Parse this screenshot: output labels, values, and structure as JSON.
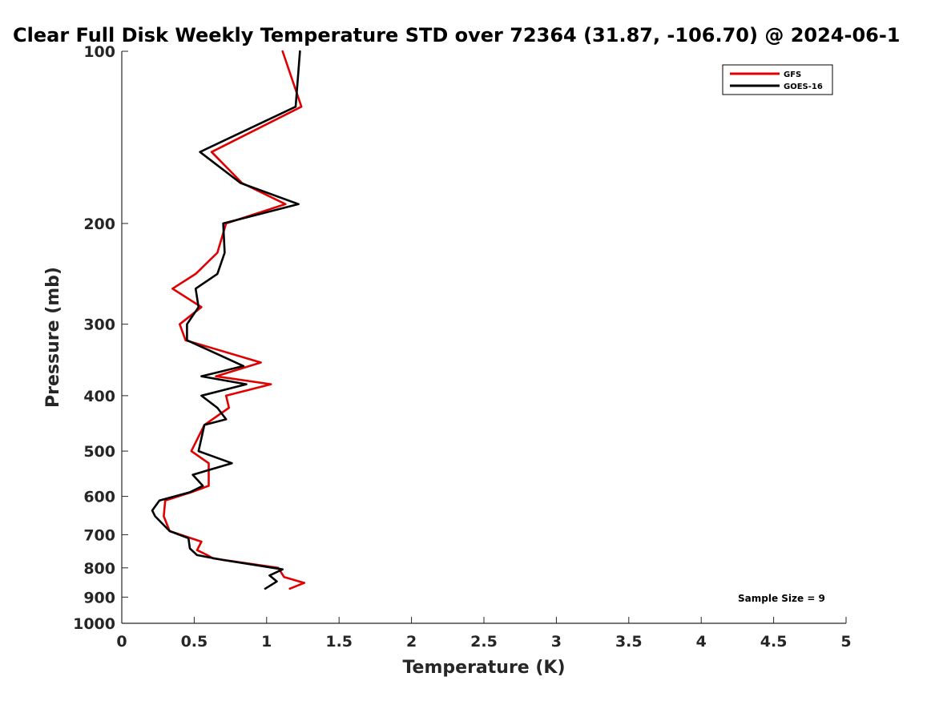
{
  "chart_data": {
    "type": "line",
    "title": "Clear Full Disk Weekly Temperature STD over 72364 (31.87, -106.70) @ 2024-06-1",
    "xlabel": "Temperature (K)",
    "ylabel": "Pressure (mb)",
    "xlim": [
      0,
      5
    ],
    "ylim": [
      1000,
      100
    ],
    "y_scale": "log (reversed)",
    "x_ticks": [
      0,
      0.5,
      1,
      1.5,
      2,
      2.5,
      3,
      3.5,
      4,
      4.5,
      5
    ],
    "x_tick_labels": [
      "0",
      "0.5",
      "1",
      "1.5",
      "2",
      "2.5",
      "3",
      "3.5",
      "4",
      "4.5",
      "5"
    ],
    "y_ticks": [
      100,
      200,
      300,
      400,
      500,
      600,
      700,
      800,
      900,
      1000
    ],
    "y_tick_labels": [
      "100",
      "200",
      "300",
      "400",
      "500",
      "600",
      "700",
      "800",
      "900",
      "1000"
    ],
    "grid": false,
    "legend": "top-right",
    "annotation": "Sample Size = 9",
    "series": [
      {
        "name": "GFS",
        "color": "#e00000",
        "points": [
          [
            1.11,
            100
          ],
          [
            1.24,
            125
          ],
          [
            0.62,
            150
          ],
          [
            0.83,
            170
          ],
          [
            1.13,
            185
          ],
          [
            0.72,
            200
          ],
          [
            0.66,
            225
          ],
          [
            0.51,
            245
          ],
          [
            0.35,
            260
          ],
          [
            0.55,
            280
          ],
          [
            0.4,
            300
          ],
          [
            0.44,
            320
          ],
          [
            0.96,
            350
          ],
          [
            0.65,
            370
          ],
          [
            1.03,
            382
          ],
          [
            0.72,
            400
          ],
          [
            0.74,
            420
          ],
          [
            0.57,
            450
          ],
          [
            0.48,
            500
          ],
          [
            0.6,
            525
          ],
          [
            0.6,
            575
          ],
          [
            0.48,
            590
          ],
          [
            0.3,
            610
          ],
          [
            0.29,
            650
          ],
          [
            0.33,
            690
          ],
          [
            0.55,
            720
          ],
          [
            0.52,
            745
          ],
          [
            0.59,
            760
          ],
          [
            0.63,
            770
          ],
          [
            1.08,
            800
          ],
          [
            1.12,
            830
          ],
          [
            1.26,
            850
          ],
          [
            1.16,
            870
          ]
        ]
      },
      {
        "name": "GOES-16",
        "color": "#000000",
        "points": [
          [
            1.23,
            100
          ],
          [
            1.2,
            125
          ],
          [
            0.54,
            150
          ],
          [
            0.82,
            170
          ],
          [
            1.22,
            185
          ],
          [
            0.7,
            200
          ],
          [
            0.71,
            225
          ],
          [
            0.66,
            245
          ],
          [
            0.51,
            260
          ],
          [
            0.53,
            280
          ],
          [
            0.45,
            300
          ],
          [
            0.45,
            320
          ],
          [
            0.84,
            355
          ],
          [
            0.55,
            370
          ],
          [
            0.86,
            382
          ],
          [
            0.55,
            400
          ],
          [
            0.66,
            420
          ],
          [
            0.72,
            440
          ],
          [
            0.57,
            450
          ],
          [
            0.53,
            500
          ],
          [
            0.76,
            525
          ],
          [
            0.49,
            550
          ],
          [
            0.56,
            575
          ],
          [
            0.47,
            590
          ],
          [
            0.26,
            610
          ],
          [
            0.21,
            635
          ],
          [
            0.23,
            650
          ],
          [
            0.33,
            690
          ],
          [
            0.46,
            710
          ],
          [
            0.47,
            740
          ],
          [
            0.52,
            760
          ],
          [
            0.7,
            775
          ],
          [
            1.11,
            805
          ],
          [
            1.02,
            825
          ],
          [
            1.07,
            845
          ],
          [
            0.99,
            870
          ]
        ]
      }
    ]
  }
}
